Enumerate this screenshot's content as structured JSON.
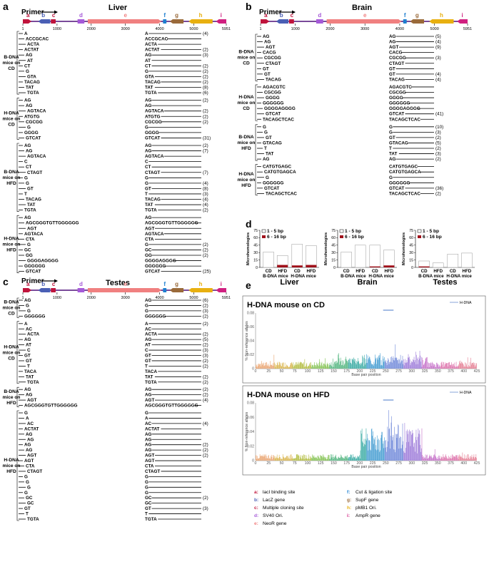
{
  "figure": {
    "panel_labels": [
      "a",
      "b",
      "c",
      "d",
      "e"
    ],
    "primer_label": "Primer",
    "features": [
      "a",
      "b",
      "c",
      "d",
      "e",
      "f",
      "g",
      "h",
      "i"
    ],
    "ticks": [
      "1",
      "1000",
      "2000",
      "3000",
      "4000",
      "5000",
      "5951"
    ],
    "feature_colors": {
      "a": "#c0143c",
      "b": "#4a5fb5",
      "c": "#c0143c",
      "d": "#a55ad8",
      "e": "#f08080",
      "f": "#1e7fd0",
      "g": "#9a6a3a",
      "h": "#e8b010",
      "i": "#d02080"
    }
  },
  "panel_a": {
    "title": "Liver",
    "groups": [
      {
        "label": "B-DNA mice on CD",
        "rows": [
          [
            "A",
            "A",
            ""
          ],
          [
            "ACCGCAC",
            "ACCGCAC",
            ""
          ],
          [
            "ACTA",
            "ACTA",
            ""
          ],
          [
            "ACTAT",
            "ACTAT",
            "(2)"
          ],
          [
            "AG",
            "AG",
            "(3)"
          ],
          [
            "AT",
            "AT",
            ""
          ],
          [
            "CT",
            "CT",
            "(2)"
          ],
          [
            "G",
            "G",
            "(2)"
          ],
          [
            "GTA",
            "GTA",
            "(2)"
          ],
          [
            "TACAG",
            "TACAG",
            "(2)"
          ],
          [
            "TAT",
            "TAT",
            "(8)"
          ],
          [
            "TGTA",
            "TGTA",
            "(6)"
          ]
        ],
        "top_count": "(4)"
      },
      {
        "label": "H-DNA mice on CD",
        "rows": [
          [
            "AG",
            "AG",
            "(2)"
          ],
          [
            "AG",
            "AG",
            ""
          ],
          [
            "AGTACA",
            "AGTACA",
            "(2)"
          ],
          [
            "ATGTG",
            "ATGTG",
            "(2)"
          ],
          [
            "CGCGG",
            "CGCGG",
            "(2)"
          ],
          [
            "G",
            "G",
            ""
          ],
          [
            "GGGG",
            "GGGG",
            ""
          ],
          [
            "GTCAT",
            "GTCAT",
            "(31)"
          ]
        ]
      },
      {
        "label": "B-DNA mice on HFD",
        "rows": [
          [
            "AG",
            "AG",
            "(2)"
          ],
          [
            "AG",
            "AG",
            "(7)"
          ],
          [
            "AGTACA",
            "AGTACA",
            ""
          ],
          [
            "C",
            "C",
            ""
          ],
          [
            "CT",
            "CT",
            ""
          ],
          [
            "CTAGT",
            "CTAGT",
            "(7)"
          ],
          [
            "G",
            "G",
            ""
          ],
          [
            "G",
            "G",
            "(4)"
          ],
          [
            "GT",
            "GT",
            "(8)"
          ],
          [
            "T",
            "T",
            "(3)"
          ],
          [
            "TACAG",
            "TACAG",
            "(4)"
          ],
          [
            "TAT",
            "TAT",
            "(4)"
          ],
          [
            "TGTA",
            "TGTA",
            "(2)"
          ]
        ]
      },
      {
        "label": "H-DNA mice on HFD",
        "rows": [
          [
            "AG",
            "AG",
            ""
          ],
          [
            "AGCGGGTGTTGGGGGG",
            "AGCGGGTGTTGGGGGG",
            ""
          ],
          [
            "AGT",
            "AGT",
            ""
          ],
          [
            "AGTACA",
            "AGTACA",
            ""
          ],
          [
            "CTA",
            "CTA",
            ""
          ],
          [
            "G",
            "G",
            "(2)"
          ],
          [
            "GC",
            "GC",
            "(2)"
          ],
          [
            "GG",
            "GG",
            "(2)"
          ],
          [
            "GGGGAGGGG",
            "GGGGAGGGG",
            ""
          ],
          [
            "GGGGGG",
            "GGGGGG",
            ""
          ],
          [
            "GTCAT",
            "GTCAT",
            "(25)"
          ]
        ]
      }
    ]
  },
  "panel_b": {
    "title": "Brain",
    "groups": [
      {
        "label": "B-DNA mice on CD",
        "rows": [
          [
            "AG",
            "AG",
            "(5)"
          ],
          [
            "AG",
            "AG",
            "(4)"
          ],
          [
            "AGT",
            "AGT",
            "(9)"
          ],
          [
            "CACG",
            "CACG",
            ""
          ],
          [
            "CGCGG",
            "CGCGG",
            "(3)"
          ],
          [
            "CTAGT",
            "CTAGT",
            ""
          ],
          [
            "GT",
            "GT",
            ""
          ],
          [
            "GT",
            "GT",
            "(4)"
          ],
          [
            "TACAG",
            "TACAG",
            "(4)"
          ]
        ]
      },
      {
        "label": "H-DNA mice on CD",
        "rows": [
          [
            "AGACGTC",
            "AGACGTC",
            ""
          ],
          [
            "CGCGG",
            "CGCGG",
            ""
          ],
          [
            "GGGG",
            "GGGG",
            ""
          ],
          [
            "GGGGGG",
            "GGGGGG",
            ""
          ],
          [
            "GGGGAGGGG",
            "GGGGAGGGG",
            ""
          ],
          [
            "GTCAT",
            "GTCAT",
            "(41)"
          ],
          [
            "TACAGCTCAC",
            "TACAGCTCAC",
            ""
          ]
        ]
      },
      {
        "label": "B-DNA mice on HFD",
        "rows": [
          [
            "G",
            "G",
            "(10)"
          ],
          [
            "G",
            "G",
            "(3)"
          ],
          [
            "GT",
            "GT",
            "(2)"
          ],
          [
            "GTACAG",
            "GTACAG",
            "(5)"
          ],
          [
            "T",
            "T",
            "(2)"
          ],
          [
            "TAT",
            "TAT",
            "(3)"
          ],
          [
            "AG",
            "AG",
            "(2)"
          ]
        ]
      },
      {
        "label": "H-DNA mice on HFD",
        "rows": [
          [
            "CATGTGAGC",
            "CATGTGAGC",
            ""
          ],
          [
            "CATGTGAGCA",
            "CATGTGAGCA",
            ""
          ],
          [
            "G",
            "G",
            ""
          ],
          [
            "GGGGGG",
            "GGGGGG",
            ""
          ],
          [
            "GTCAT",
            "GTCAT",
            "(36)"
          ],
          [
            "TACAGCTCAC",
            "TACAGCTCAC",
            "(2)"
          ]
        ]
      }
    ]
  },
  "panel_c": {
    "title": "Testes",
    "groups": [
      {
        "label": "B-DNA mice on CD",
        "rows": [
          [
            "AG",
            "AG",
            "(6)"
          ],
          [
            "G",
            "G",
            "(2)"
          ],
          [
            "G",
            "G",
            "(3)"
          ],
          [
            "GGGGGG",
            "GGGGGG",
            "(2)"
          ]
        ]
      },
      {
        "label": "H-DNA mice on CD",
        "rows": [
          [
            "A",
            "A",
            "(2)"
          ],
          [
            "AC",
            "AC",
            ""
          ],
          [
            "ACTA",
            "ACTA",
            "(2)"
          ],
          [
            "AG",
            "AG",
            "(5)"
          ],
          [
            "AT",
            "AT",
            "(2)"
          ],
          [
            "C",
            "C",
            "(3)"
          ],
          [
            "GT",
            "GT",
            "(3)"
          ],
          [
            "GT",
            "GT",
            "(2)"
          ],
          [
            "T",
            "T",
            "(2)"
          ],
          [
            "TACA",
            "TACA",
            ""
          ],
          [
            "TAT",
            "TAT",
            "(2)"
          ],
          [
            "TGTA",
            "TGTA",
            "(2)"
          ]
        ]
      },
      {
        "label": "B-DNA mice on HFD",
        "rows": [
          [
            "AG",
            "AG",
            "(2)"
          ],
          [
            "AG",
            "AG",
            "(2)"
          ],
          [
            "AGT",
            "AGT",
            "(4)"
          ],
          [
            "AGCGGGTGTTGGGGGG",
            "AGCGGGTGTTGGGGGG",
            ""
          ]
        ]
      },
      {
        "label": "H-DNA mice on HFD",
        "rows": [
          [
            "G",
            "G",
            ""
          ],
          [
            "A",
            "A",
            ""
          ],
          [
            "AC",
            "AC",
            "(4)"
          ],
          [
            "ACTAT",
            "ACTAT",
            ""
          ],
          [
            "AG",
            "AG",
            ""
          ],
          [
            "AG",
            "AG",
            ""
          ],
          [
            "AG",
            "AG",
            "(2)"
          ],
          [
            "AG",
            "AG",
            "(2)"
          ],
          [
            "AGT",
            "AGT",
            "(2)"
          ],
          [
            "AGT",
            "AGT",
            ""
          ],
          [
            "CTA",
            "CTA",
            ""
          ],
          [
            "CTAGT",
            "CTAGT",
            ""
          ],
          [
            "G",
            "G",
            ""
          ],
          [
            "G",
            "G",
            ""
          ],
          [
            "G",
            "G",
            ""
          ],
          [
            "G",
            "G",
            ""
          ],
          [
            "GC",
            "GC",
            "(2)"
          ],
          [
            "GC",
            "GC",
            ""
          ],
          [
            "GT",
            "GT",
            "(3)"
          ],
          [
            "T",
            "T",
            ""
          ],
          [
            "TGTA",
            "TGTA",
            ""
          ]
        ]
      }
    ]
  },
  "panel_d": {
    "ylabel": "Microhomologies",
    "legend": [
      "1 - 5 bp",
      "6 - 16 bp"
    ],
    "x_sub": [
      "CD",
      "HFD",
      "CD",
      "HFD"
    ],
    "x_groups": [
      "B-DNA mice",
      "H-DNA mice"
    ],
    "colors": {
      "small": "#ffffff",
      "large": "#a0101a"
    },
    "chart_data": [
      {
        "type": "bar",
        "title": "Liver",
        "categories": [
          "CD",
          "HFD",
          "CD",
          "HFD"
        ],
        "ylim": [
          0,
          75
        ],
        "yticks": [
          "0",
          "15",
          "30",
          "45",
          "60",
          "75"
        ],
        "series": [
          {
            "name": "1 - 5 bp",
            "values": [
              31,
              19,
              43,
              39
            ]
          },
          {
            "name": "6 - 16 bp",
            "values": [
              0,
              5,
              4,
              5
            ]
          }
        ]
      },
      {
        "type": "bar",
        "title": "Brain",
        "categories": [
          "CD",
          "HFD",
          "CD",
          "HFD"
        ],
        "ylim": [
          0,
          75
        ],
        "yticks": [
          "0",
          "15",
          "30",
          "45",
          "60",
          "75"
        ],
        "series": [
          {
            "name": "1 - 5 bp",
            "values": [
              31,
              45,
              43,
              31
            ]
          },
          {
            "name": "6 - 16 bp",
            "values": [
              0,
              0,
              2,
              4
            ]
          }
        ]
      },
      {
        "type": "bar",
        "title": "Testes",
        "categories": [
          "CD",
          "HFD",
          "CD",
          "HFD"
        ],
        "ylim": [
          0,
          75
        ],
        "yticks": [
          "0",
          "15",
          "30",
          "45",
          "60",
          "75"
        ],
        "series": [
          {
            "name": "1 - 5 bp",
            "values": [
              11,
              9,
              27,
              29
            ]
          },
          {
            "name": "6 - 16 bp",
            "values": [
              2,
              0,
              0,
              0
            ]
          }
        ]
      }
    ]
  },
  "panel_e": {
    "ylabel": "% Non-reference alleles",
    "xlabel": "Base pair position",
    "legend": "H-DNA",
    "chart_data": [
      {
        "type": "bar",
        "title": "H-DNA mouse on CD",
        "ylim": [
          0,
          0.08
        ],
        "yticks": [
          "0",
          "0.02",
          "0.04",
          "0.06",
          "0.08"
        ],
        "xticks": [
          "0",
          "25",
          "50",
          "75",
          "100",
          "125",
          "150",
          "175",
          "200",
          "225",
          "250",
          "275",
          "300",
          "325",
          "350",
          "375",
          "400",
          "425"
        ]
      },
      {
        "type": "bar",
        "title": "H-DNA mouse on HFD",
        "ylim": [
          0,
          0.08
        ],
        "yticks": [
          "0",
          "0.02",
          "0.04",
          "0.06",
          "0.08"
        ],
        "xticks": [
          "0",
          "25",
          "50",
          "75",
          "100",
          "125",
          "150",
          "175",
          "200",
          "225",
          "250",
          "275",
          "300",
          "325",
          "350",
          "375",
          "400",
          "425"
        ]
      }
    ]
  },
  "key": [
    {
      "letter": "a:",
      "text": "lacI binding site",
      "color": "#c0143c"
    },
    {
      "letter": "b:",
      "text": "LacZ gene",
      "color": "#4a5fb5"
    },
    {
      "letter": "c:",
      "text": "Multiple cloning site",
      "color": "#c0143c"
    },
    {
      "letter": "d:",
      "text": "SV40 Ori.",
      "color": "#a55ad8"
    },
    {
      "letter": "e:",
      "text": "NeoR gene",
      "color": "#f08080"
    },
    {
      "letter": "f:",
      "text": "Cut & ligation site",
      "color": "#1e7fd0"
    },
    {
      "letter": "g:",
      "text": "SupF gene",
      "color": "#9a6a3a"
    },
    {
      "letter": "h:",
      "text": "pMB1 Ori.",
      "color": "#e8b010"
    },
    {
      "letter": "i:",
      "text": "AmpR gene",
      "color": "#d02080"
    }
  ]
}
